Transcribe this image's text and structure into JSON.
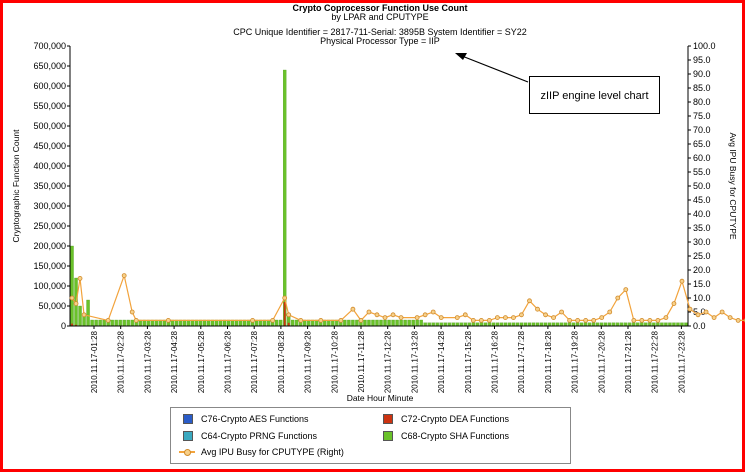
{
  "chart_data": {
    "type": "bar",
    "title": "Crypto Coprocessor Function Use Count",
    "subtitle": "by LPAR and CPUTYPE",
    "subtitle2": "CPC Unique Identifier = 2817-711-Serial: 3895B System Identifier = SY22",
    "subtitle3": "Physical Processor Type = IIP",
    "xlabel": "Date Hour Minute",
    "ylabel": "Cryptographic Function Count",
    "y2label": "Avg IPU Busy for CPUTYPE",
    "ylim": [
      0,
      700000
    ],
    "y2lim": [
      0,
      100
    ],
    "yticks": [
      "0",
      "50,000",
      "100,000",
      "150,000",
      "200,000",
      "250,000",
      "300,000",
      "350,000",
      "400,000",
      "450,000",
      "500,000",
      "550,000",
      "600,000",
      "650,000",
      "700,000"
    ],
    "y2ticks": [
      "0.0",
      "5.0",
      "10.0",
      "15.0",
      "20.0",
      "25.0",
      "30.0",
      "35.0",
      "40.0",
      "45.0",
      "50.0",
      "55.0",
      "60.0",
      "65.0",
      "70.0",
      "75.0",
      "80.0",
      "85.0",
      "90.0",
      "95.0",
      "100.0"
    ],
    "xticks": [
      "2010.11.17-01:28",
      "2010.11.17-02:28",
      "2010.11.17-03:28",
      "2010.11.17-04:28",
      "2010.11.17-05:28",
      "2010.11.17-06:28",
      "2010.11.17-07:28",
      "2010.11.17-08:28",
      "2010.11.17-09:28",
      "2010.11.17-10:28",
      "2010.11.17-11:28",
      "2010.11.17-12:28",
      "2010.11.17-13:28",
      "2010.11.17-14:28",
      "2010.11.17-15:28",
      "2010.11.17-16:28",
      "2010.11.17-17:28",
      "2010.11.17-18:28",
      "2010.11.17-19:28",
      "2010.11.17-20:28",
      "2010.11.17-21:28",
      "2010.11.17-22:28",
      "2010.11.17-23:28"
    ],
    "legend_placement": "bottom",
    "grid": false,
    "series": [
      {
        "name": "C76-Crypto AES Functions",
        "color": "#2a5cc8",
        "values": []
      },
      {
        "name": "C72-Crypto DEA Functions",
        "color": "#cc3311",
        "values": [
          6000,
          3000,
          0,
          0,
          0,
          0,
          0,
          0,
          0,
          0,
          0,
          0,
          0,
          0,
          0,
          0,
          0,
          0,
          0,
          0,
          0,
          0,
          0,
          0,
          0,
          0,
          0,
          0,
          0,
          0,
          0,
          0,
          0,
          0,
          0,
          0,
          0,
          0,
          0,
          0,
          0,
          0,
          0,
          0,
          0,
          0,
          0,
          0,
          0,
          0,
          0,
          0,
          0,
          60000,
          8000,
          0,
          0,
          0,
          0,
          0,
          0,
          0,
          0,
          0,
          0,
          0,
          0,
          0,
          0,
          0,
          0,
          0,
          0,
          0,
          0,
          0,
          0,
          0,
          0,
          0,
          0,
          0,
          0,
          0,
          0,
          0,
          0,
          0,
          0,
          0,
          0,
          0,
          0,
          0,
          0,
          0,
          0,
          0,
          0,
          0,
          0,
          0,
          0,
          0,
          0,
          0,
          0,
          0,
          0,
          0,
          0,
          0,
          0,
          0,
          0,
          0,
          0,
          0,
          0,
          0,
          0,
          0,
          0,
          0,
          0,
          0,
          0,
          0,
          0,
          0,
          0,
          0,
          0,
          0,
          0,
          0,
          0,
          0,
          0,
          0,
          0,
          0,
          0,
          0,
          0,
          0,
          0,
          0
        ]
      },
      {
        "name": "C64-Crypto PRNG Functions",
        "color": "#3aa9c0",
        "values": []
      },
      {
        "name": "C68-Crypto SHA Functions",
        "color": "#6ac22a",
        "values": [
          200000,
          120000,
          50000,
          30000,
          65000,
          15000,
          15000,
          15000,
          15000,
          15000,
          15000,
          15000,
          15000,
          15000,
          15000,
          15000,
          15000,
          15000,
          15000,
          15000,
          15000,
          15000,
          15000,
          15000,
          15000,
          15000,
          15000,
          15000,
          15000,
          15000,
          15000,
          15000,
          15000,
          15000,
          15000,
          15000,
          15000,
          15000,
          15000,
          15000,
          15000,
          15000,
          15000,
          15000,
          15000,
          15000,
          15000,
          15000,
          15000,
          15000,
          15000,
          15000,
          15000,
          640000,
          25000,
          15000,
          15000,
          15000,
          15000,
          15000,
          15000,
          15000,
          15000,
          15000,
          15000,
          15000,
          15000,
          15000,
          15000,
          15000,
          15000,
          15000,
          15000,
          15000,
          15000,
          15000,
          15000,
          15000,
          15000,
          15000,
          15000,
          15000,
          15000,
          15000,
          15000,
          15000,
          15000,
          15000,
          8000,
          8000,
          8000,
          8000,
          8000,
          8000,
          8000,
          8000,
          8000,
          8000,
          8000,
          8000,
          8000,
          8000,
          8000,
          8000,
          8000,
          8000,
          8000,
          8000,
          8000,
          8000,
          8000,
          8000,
          8000,
          8000,
          8000,
          8000,
          8000,
          8000,
          8000,
          8000,
          8000,
          8000,
          8000,
          8000,
          8000,
          8000,
          8000,
          8000,
          8000,
          8000,
          8000,
          8000,
          8000,
          8000,
          8000,
          8000,
          8000,
          8000,
          8000,
          8000,
          8000,
          8000,
          8000,
          8000,
          8000,
          8000,
          8000,
          8000,
          8000,
          8000,
          8000,
          8000,
          8000,
          8000
        ]
      },
      {
        "name": "Avg IPU Busy for CPUTYPE (Right)",
        "color": "#f2a33c",
        "axis": "right",
        "values": [
          10,
          8,
          17,
          4,
          2,
          2,
          2,
          2,
          2,
          2,
          2,
          2,
          2,
          2,
          2,
          2,
          2,
          2,
          2,
          2,
          2,
          2,
          2,
          2,
          2,
          2,
          2,
          2,
          2,
          2,
          2,
          2,
          2,
          2,
          2,
          2,
          2,
          2,
          2,
          2,
          2,
          2,
          2,
          2,
          2,
          2,
          2,
          2,
          2,
          2,
          2,
          2,
          2,
          11,
          4,
          2,
          2,
          2,
          2,
          2,
          2,
          2,
          2,
          2,
          2,
          2,
          2,
          2,
          2,
          2,
          2,
          2,
          2,
          2,
          2,
          2,
          2,
          2,
          2,
          2,
          2,
          2,
          2,
          2,
          2,
          2,
          2,
          2,
          2,
          2,
          2,
          2,
          2,
          2,
          2,
          2,
          2,
          2,
          2,
          2,
          2,
          2,
          2,
          2,
          2,
          2,
          2,
          2,
          2,
          2,
          2,
          2,
          2,
          2,
          2,
          2,
          2,
          2,
          2,
          2,
          2,
          2,
          2,
          2,
          2,
          2,
          2,
          2,
          2,
          2,
          2,
          2,
          2,
          2,
          2,
          2,
          2,
          2,
          2,
          2,
          2,
          2,
          2,
          2,
          2,
          2,
          2,
          2,
          2,
          2,
          2,
          2,
          2,
          2,
          2,
          2
        ]
      }
    ]
  },
  "line_points": [
    [
      0,
      10
    ],
    [
      1,
      8
    ],
    [
      2,
      17
    ],
    [
      3,
      4
    ],
    [
      9,
      2
    ],
    [
      13,
      18
    ],
    [
      15,
      5
    ],
    [
      16,
      2
    ],
    [
      24,
      2
    ],
    [
      45,
      2
    ],
    [
      50,
      2
    ],
    [
      53,
      10
    ],
    [
      54,
      4
    ],
    [
      57,
      2
    ],
    [
      62,
      2
    ],
    [
      67,
      2
    ],
    [
      70,
      6
    ],
    [
      72,
      2
    ],
    [
      74,
      5
    ],
    [
      76,
      4
    ],
    [
      78,
      3
    ],
    [
      80,
      4
    ],
    [
      82,
      3
    ],
    [
      86,
      3
    ],
    [
      88,
      4
    ],
    [
      90,
      5
    ],
    [
      92,
      3
    ],
    [
      96,
      3
    ],
    [
      98,
      4
    ],
    [
      100,
      2
    ],
    [
      102,
      2
    ],
    [
      104,
      2
    ],
    [
      106,
      3
    ],
    [
      108,
      3
    ],
    [
      110,
      3
    ],
    [
      112,
      4
    ],
    [
      114,
      9
    ],
    [
      116,
      6
    ],
    [
      118,
      4
    ],
    [
      120,
      3
    ],
    [
      122,
      5
    ],
    [
      124,
      2
    ],
    [
      126,
      2
    ],
    [
      128,
      2
    ],
    [
      130,
      2
    ],
    [
      132,
      3
    ],
    [
      134,
      5
    ],
    [
      136,
      10
    ],
    [
      138,
      13
    ],
    [
      140,
      2
    ],
    [
      142,
      2
    ],
    [
      144,
      2
    ],
    [
      146,
      2
    ],
    [
      148,
      3
    ],
    [
      150,
      8
    ],
    [
      152,
      16
    ],
    [
      154,
      6
    ],
    [
      156,
      4
    ],
    [
      158,
      5
    ],
    [
      160,
      3
    ],
    [
      162,
      5
    ],
    [
      164,
      3
    ],
    [
      166,
      2
    ],
    [
      168,
      2
    ],
    [
      170,
      3
    ],
    [
      172,
      3
    ],
    [
      174,
      2
    ],
    [
      176,
      2
    ],
    [
      178,
      16
    ],
    [
      180,
      2
    ],
    [
      182,
      2
    ],
    [
      184,
      2
    ],
    [
      186,
      3
    ],
    [
      188,
      3
    ]
  ],
  "callout": "zIIP engine level chart",
  "legend": {
    "items": [
      "C76-Crypto AES Functions",
      "C72-Crypto DEA Functions",
      "C64-Crypto PRNG Functions",
      "C68-Crypto SHA Functions",
      "Avg IPU Busy for CPUTYPE (Right)"
    ]
  }
}
